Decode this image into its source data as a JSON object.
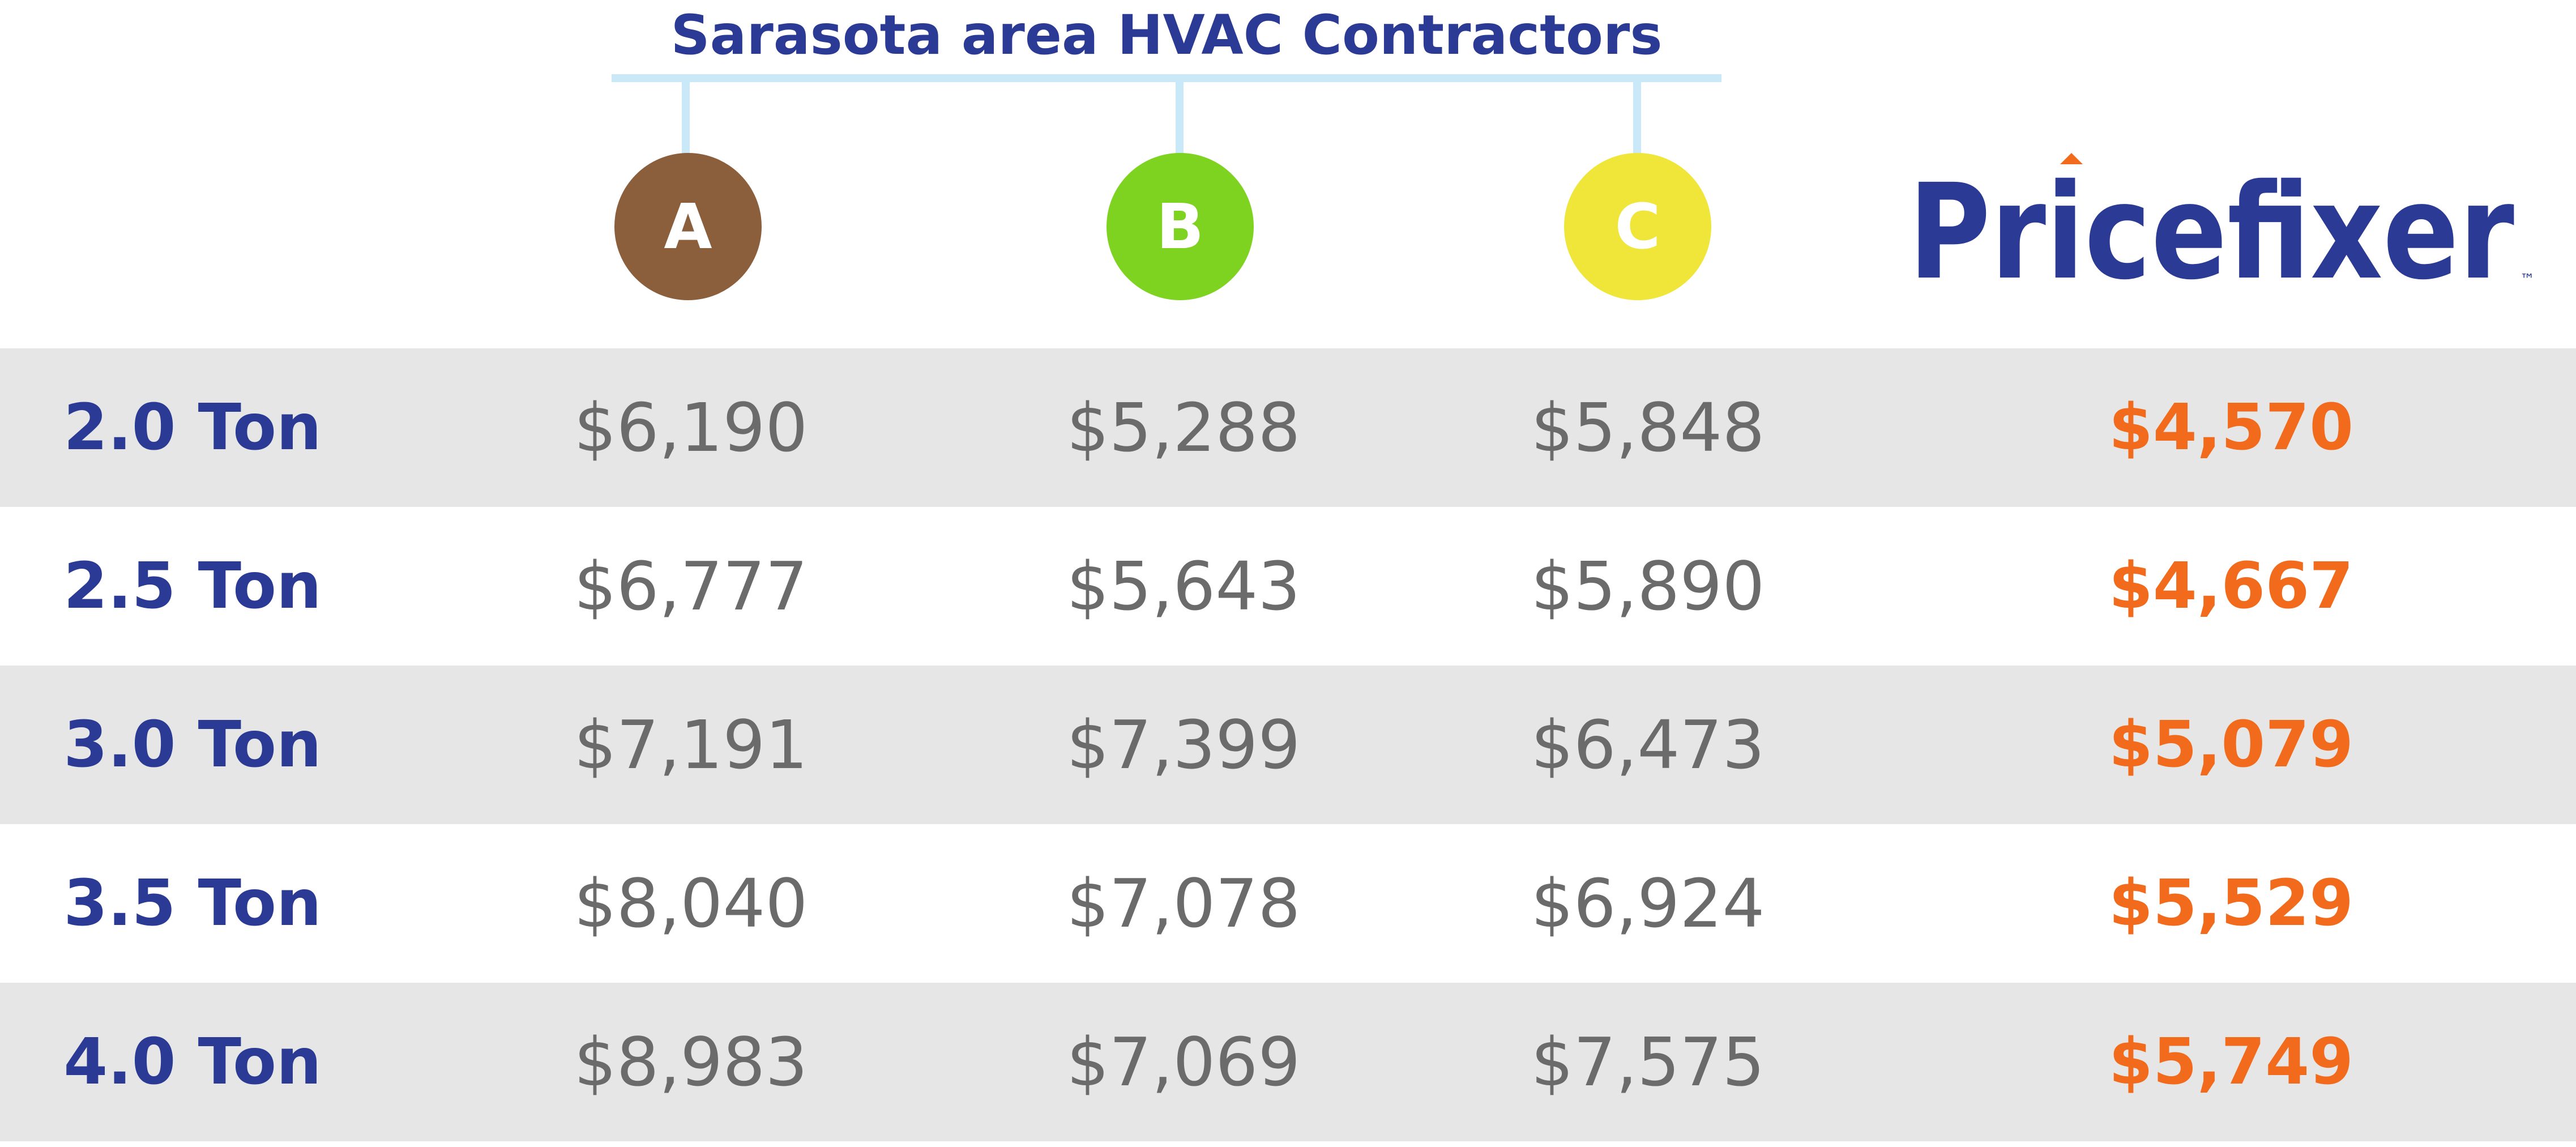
{
  "header": {
    "title": "Sarasota area HVAC Contractors"
  },
  "contractors": [
    {
      "label": "A",
      "color": "#8b5e3c"
    },
    {
      "label": "B",
      "color": "#7ed321"
    },
    {
      "label": "C",
      "color": "#f0e63a"
    }
  ],
  "logo": {
    "text": "Pricefixer",
    "trademark": "™",
    "text_color": "#2a3a95",
    "accent_color": "#f26a1b"
  },
  "colors": {
    "pricefixer_price": "#f26a1b",
    "label": "#2a3a95",
    "price": "#6b6b6b"
  },
  "chart_data": {
    "type": "table",
    "title": "Sarasota area HVAC Contractors",
    "columns": [
      "A",
      "B",
      "C",
      "Pricefixer"
    ],
    "rows": [
      {
        "label": "2.0 Ton",
        "values": [
          "$6,190",
          "$5,288",
          "$5,848",
          "$4,570"
        ]
      },
      {
        "label": "2.5 Ton",
        "values": [
          "$6,777",
          "$5,643",
          "$5,890",
          "$4,667"
        ]
      },
      {
        "label": "3.0 Ton",
        "values": [
          "$7,191",
          "$7,399",
          "$6,473",
          "$5,079"
        ]
      },
      {
        "label": "3.5 Ton",
        "values": [
          "$8,040",
          "$7,078",
          "$6,924",
          "$5,529"
        ]
      },
      {
        "label": "4.0 Ton",
        "values": [
          "$8,983",
          "$7,069",
          "$7,575",
          "$5,749"
        ]
      }
    ]
  }
}
